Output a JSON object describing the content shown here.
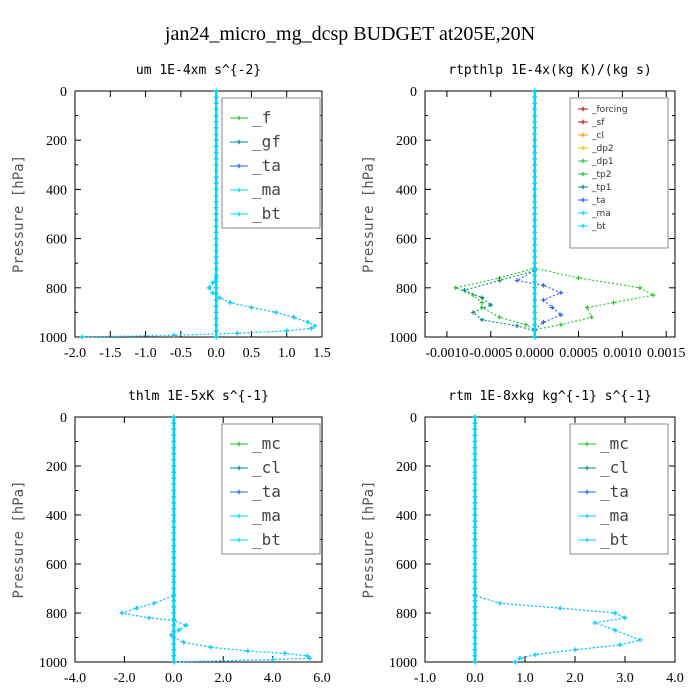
{
  "title": "jan24_micro_mg_dcsp  BUDGET at205E,20N",
  "colors": {
    "green": "#22c522",
    "blue": "#1f5fff",
    "cyan": "#00d8ff",
    "red": "#cc1111",
    "orange": "#ff9900",
    "yellow": "#e6c800",
    "teal": "#008b8b"
  },
  "chart_data": [
    {
      "type": "line",
      "title": "um   1E-4xm s^{-2}",
      "ylabel": "Pressure [hPa]",
      "xlim": [
        -2.0,
        1.5
      ],
      "ylim": [
        1000,
        0
      ],
      "xticks": [
        "-2.0",
        "-1.5",
        "-1.0",
        "-0.5",
        "0.0",
        "0.5",
        "1.0",
        "1.5"
      ],
      "yticks": [
        "0",
        "200",
        "400",
        "600",
        "800",
        "1000"
      ],
      "legend": [
        "_f",
        "_gf",
        "_ta",
        "_ma",
        "_bt"
      ],
      "series": [
        {
          "name": "_f",
          "color": "#22c522",
          "x": [
            0.0,
            0.0
          ],
          "y": [
            0,
            1000
          ]
        },
        {
          "name": "_gf",
          "color": "#008b8b",
          "x": [
            0.0,
            0.0
          ],
          "y": [
            0,
            1000
          ]
        },
        {
          "name": "_ta",
          "color": "#1f5fff",
          "x": [
            0.0,
            0.0,
            -0.05,
            -0.1,
            -0.05,
            0.05,
            0.2,
            0.5,
            0.85,
            1.1,
            1.3,
            1.4,
            1.35,
            1.0,
            0.3,
            -0.6,
            -1.9
          ],
          "y": [
            0,
            760,
            780,
            800,
            820,
            840,
            860,
            880,
            900,
            920,
            940,
            955,
            965,
            975,
            985,
            993,
            1000
          ]
        },
        {
          "name": "_ma",
          "color": "#00d8ff",
          "x": [
            0.0,
            0.0
          ],
          "y": [
            0,
            1000
          ]
        },
        {
          "name": "_bt",
          "color": "#00d8ff",
          "x": [
            0.0,
            0.0,
            -0.05,
            -0.1,
            -0.05,
            0.05,
            0.2,
            0.5,
            0.85,
            1.1,
            1.3,
            1.4,
            1.35,
            1.0,
            0.3,
            -0.6,
            -1.9
          ],
          "y": [
            0,
            760,
            780,
            800,
            820,
            840,
            860,
            880,
            900,
            920,
            940,
            955,
            965,
            975,
            985,
            993,
            1000
          ]
        }
      ]
    },
    {
      "type": "line",
      "title": "rtpthlp   1E-4x(kg K)/(kg s)",
      "ylabel": "Pressure [hPa]",
      "xlim": [
        -0.00125,
        0.0016
      ],
      "ylim": [
        1000,
        0
      ],
      "xticks": [
        "-0.0010",
        "-0.0005",
        "0.0000",
        "0.0005",
        "0.0010",
        "0.0015"
      ],
      "xtick_values": [
        -0.001,
        -0.0005,
        0.0,
        0.0005,
        0.001,
        0.0015
      ],
      "yticks": [
        "0",
        "200",
        "400",
        "600",
        "800",
        "1000"
      ],
      "legend": [
        "_forcing",
        "_sf",
        "_cl",
        "_dp2",
        "_dp1",
        "_tp2",
        "_tp1",
        "_ta",
        "_ma",
        "_bt"
      ],
      "series": [
        {
          "name": "_forcing",
          "color": "#cc1111",
          "x": [
            0.0,
            0.0
          ],
          "y": [
            0,
            1000
          ]
        },
        {
          "name": "_sf",
          "color": "#cc1111",
          "x": [
            0.0,
            0.0
          ],
          "y": [
            0,
            1000
          ]
        },
        {
          "name": "_cl",
          "color": "#ff9900",
          "x": [
            0.0,
            0.0
          ],
          "y": [
            0,
            1000
          ]
        },
        {
          "name": "_dp2",
          "color": "#e6c800",
          "x": [
            0.0,
            0.0
          ],
          "y": [
            0,
            1000
          ]
        },
        {
          "name": "_dp1",
          "color": "#22c522",
          "x": [
            0.0,
            0.0,
            0.0005,
            0.0012,
            0.00135,
            0.0009,
            0.0006,
            0.00065,
            0.0003,
            0.0,
            0.0
          ],
          "y": [
            0,
            720,
            760,
            800,
            830,
            860,
            880,
            920,
            950,
            970,
            1000
          ]
        },
        {
          "name": "_tp2",
          "color": "#22c522",
          "x": [
            0.0,
            0.0,
            -0.0004,
            -0.0009,
            -0.0007,
            -0.0006,
            -0.0006,
            -0.0004,
            -0.0001,
            0.0,
            0.0
          ],
          "y": [
            0,
            720,
            760,
            800,
            830,
            860,
            880,
            920,
            950,
            970,
            1000
          ]
        },
        {
          "name": "_tp1",
          "color": "#008b8b",
          "x": [
            0.0,
            0.0,
            -0.0004,
            -0.0008,
            -0.0006,
            -0.0005,
            -0.0007,
            -0.0006,
            -0.0002,
            0.0,
            0.0
          ],
          "y": [
            0,
            730,
            770,
            810,
            840,
            870,
            900,
            930,
            955,
            975,
            1000
          ]
        },
        {
          "name": "_ta",
          "color": "#1f5fff",
          "x": [
            0.0,
            0.0,
            -0.0002,
            0.0001,
            0.0003,
            0.0001,
            0.0002,
            0.0003,
            0.0001,
            0.0,
            0.0
          ],
          "y": [
            0,
            730,
            770,
            790,
            820,
            850,
            880,
            910,
            940,
            970,
            1000
          ]
        },
        {
          "name": "_ma",
          "color": "#00d8ff",
          "x": [
            0.0,
            0.0
          ],
          "y": [
            0,
            1000
          ]
        },
        {
          "name": "_bt",
          "color": "#00d8ff",
          "x": [
            0.0,
            0.0
          ],
          "y": [
            0,
            1000
          ]
        }
      ]
    },
    {
      "type": "line",
      "title": "thlm   1E-5xK s^{-1}",
      "ylabel": "Pressure [hPa]",
      "xlim": [
        -4.0,
        6.0
      ],
      "ylim": [
        1000,
        0
      ],
      "xticks": [
        "-4.0",
        "-2.0",
        "0.0",
        "2.0",
        "4.0",
        "6.0"
      ],
      "yticks": [
        "0",
        "200",
        "400",
        "600",
        "800",
        "1000"
      ],
      "legend": [
        "_mc",
        "_cl",
        "_ta",
        "_ma",
        "_bt"
      ],
      "series": [
        {
          "name": "_mc",
          "color": "#22c522",
          "x": [
            0.0,
            0.0
          ],
          "y": [
            0,
            1000
          ]
        },
        {
          "name": "_cl",
          "color": "#008b8b",
          "x": [
            0.0,
            0.0
          ],
          "y": [
            0,
            1000
          ]
        },
        {
          "name": "_ta",
          "color": "#1f5fff",
          "x": [
            0.0,
            0.0,
            -0.8,
            -1.5,
            -2.1,
            -1.0,
            0.0,
            0.5,
            0.2,
            -0.1,
            0.0,
            0.4,
            1.5,
            3.0,
            4.5,
            5.4,
            5.5,
            4.0,
            0.0
          ],
          "y": [
            0,
            730,
            760,
            780,
            800,
            820,
            830,
            850,
            870,
            890,
            900,
            920,
            940,
            955,
            965,
            975,
            985,
            990,
            1000
          ]
        },
        {
          "name": "_ma",
          "color": "#00d8ff",
          "x": [
            0.0,
            0.0
          ],
          "y": [
            0,
            1000
          ]
        },
        {
          "name": "_bt",
          "color": "#00d8ff",
          "x": [
            0.0,
            0.0,
            -0.8,
            -1.5,
            -2.1,
            -1.0,
            0.0,
            0.5,
            0.2,
            -0.1,
            0.0,
            0.4,
            1.5,
            3.0,
            4.5,
            5.4,
            5.5,
            4.0,
            0.0
          ],
          "y": [
            0,
            730,
            760,
            780,
            800,
            820,
            830,
            850,
            870,
            890,
            900,
            920,
            940,
            955,
            965,
            975,
            985,
            990,
            1000
          ]
        }
      ]
    },
    {
      "type": "line",
      "title": "rtm   1E-8xkg kg^{-1} s^{-1}",
      "ylabel": "Pressure [hPa]",
      "xlim": [
        -1.0,
        4.0
      ],
      "ylim": [
        1000,
        0
      ],
      "xticks": [
        "-1.0",
        "0.0",
        "1.0",
        "2.0",
        "3.0",
        "4.0"
      ],
      "yticks": [
        "0",
        "200",
        "400",
        "600",
        "800",
        "1000"
      ],
      "legend": [
        "_mc",
        "_cl",
        "_ta",
        "_ma",
        "_bt"
      ],
      "series": [
        {
          "name": "_mc",
          "color": "#22c522",
          "x": [
            0.0,
            0.0
          ],
          "y": [
            0,
            1000
          ]
        },
        {
          "name": "_cl",
          "color": "#008b8b",
          "x": [
            0.0,
            0.0
          ],
          "y": [
            0,
            1000
          ]
        },
        {
          "name": "_ta",
          "color": "#1f5fff",
          "x": [
            0.0,
            0.0,
            0.5,
            1.7,
            2.8,
            3.0,
            2.4,
            2.8,
            3.3,
            2.9,
            2.0,
            1.2,
            0.9,
            0.8
          ],
          "y": [
            0,
            730,
            760,
            780,
            800,
            820,
            840,
            870,
            910,
            930,
            950,
            970,
            985,
            1000
          ]
        },
        {
          "name": "_ma",
          "color": "#00d8ff",
          "x": [
            0.0,
            0.0
          ],
          "y": [
            0,
            1000
          ]
        },
        {
          "name": "_bt",
          "color": "#00d8ff",
          "x": [
            0.0,
            0.0,
            0.5,
            1.7,
            2.8,
            3.0,
            2.4,
            2.8,
            3.3,
            2.9,
            2.0,
            1.2,
            0.9,
            0.8
          ],
          "y": [
            0,
            730,
            760,
            780,
            800,
            820,
            840,
            870,
            910,
            930,
            950,
            970,
            985,
            1000
          ]
        }
      ]
    }
  ]
}
